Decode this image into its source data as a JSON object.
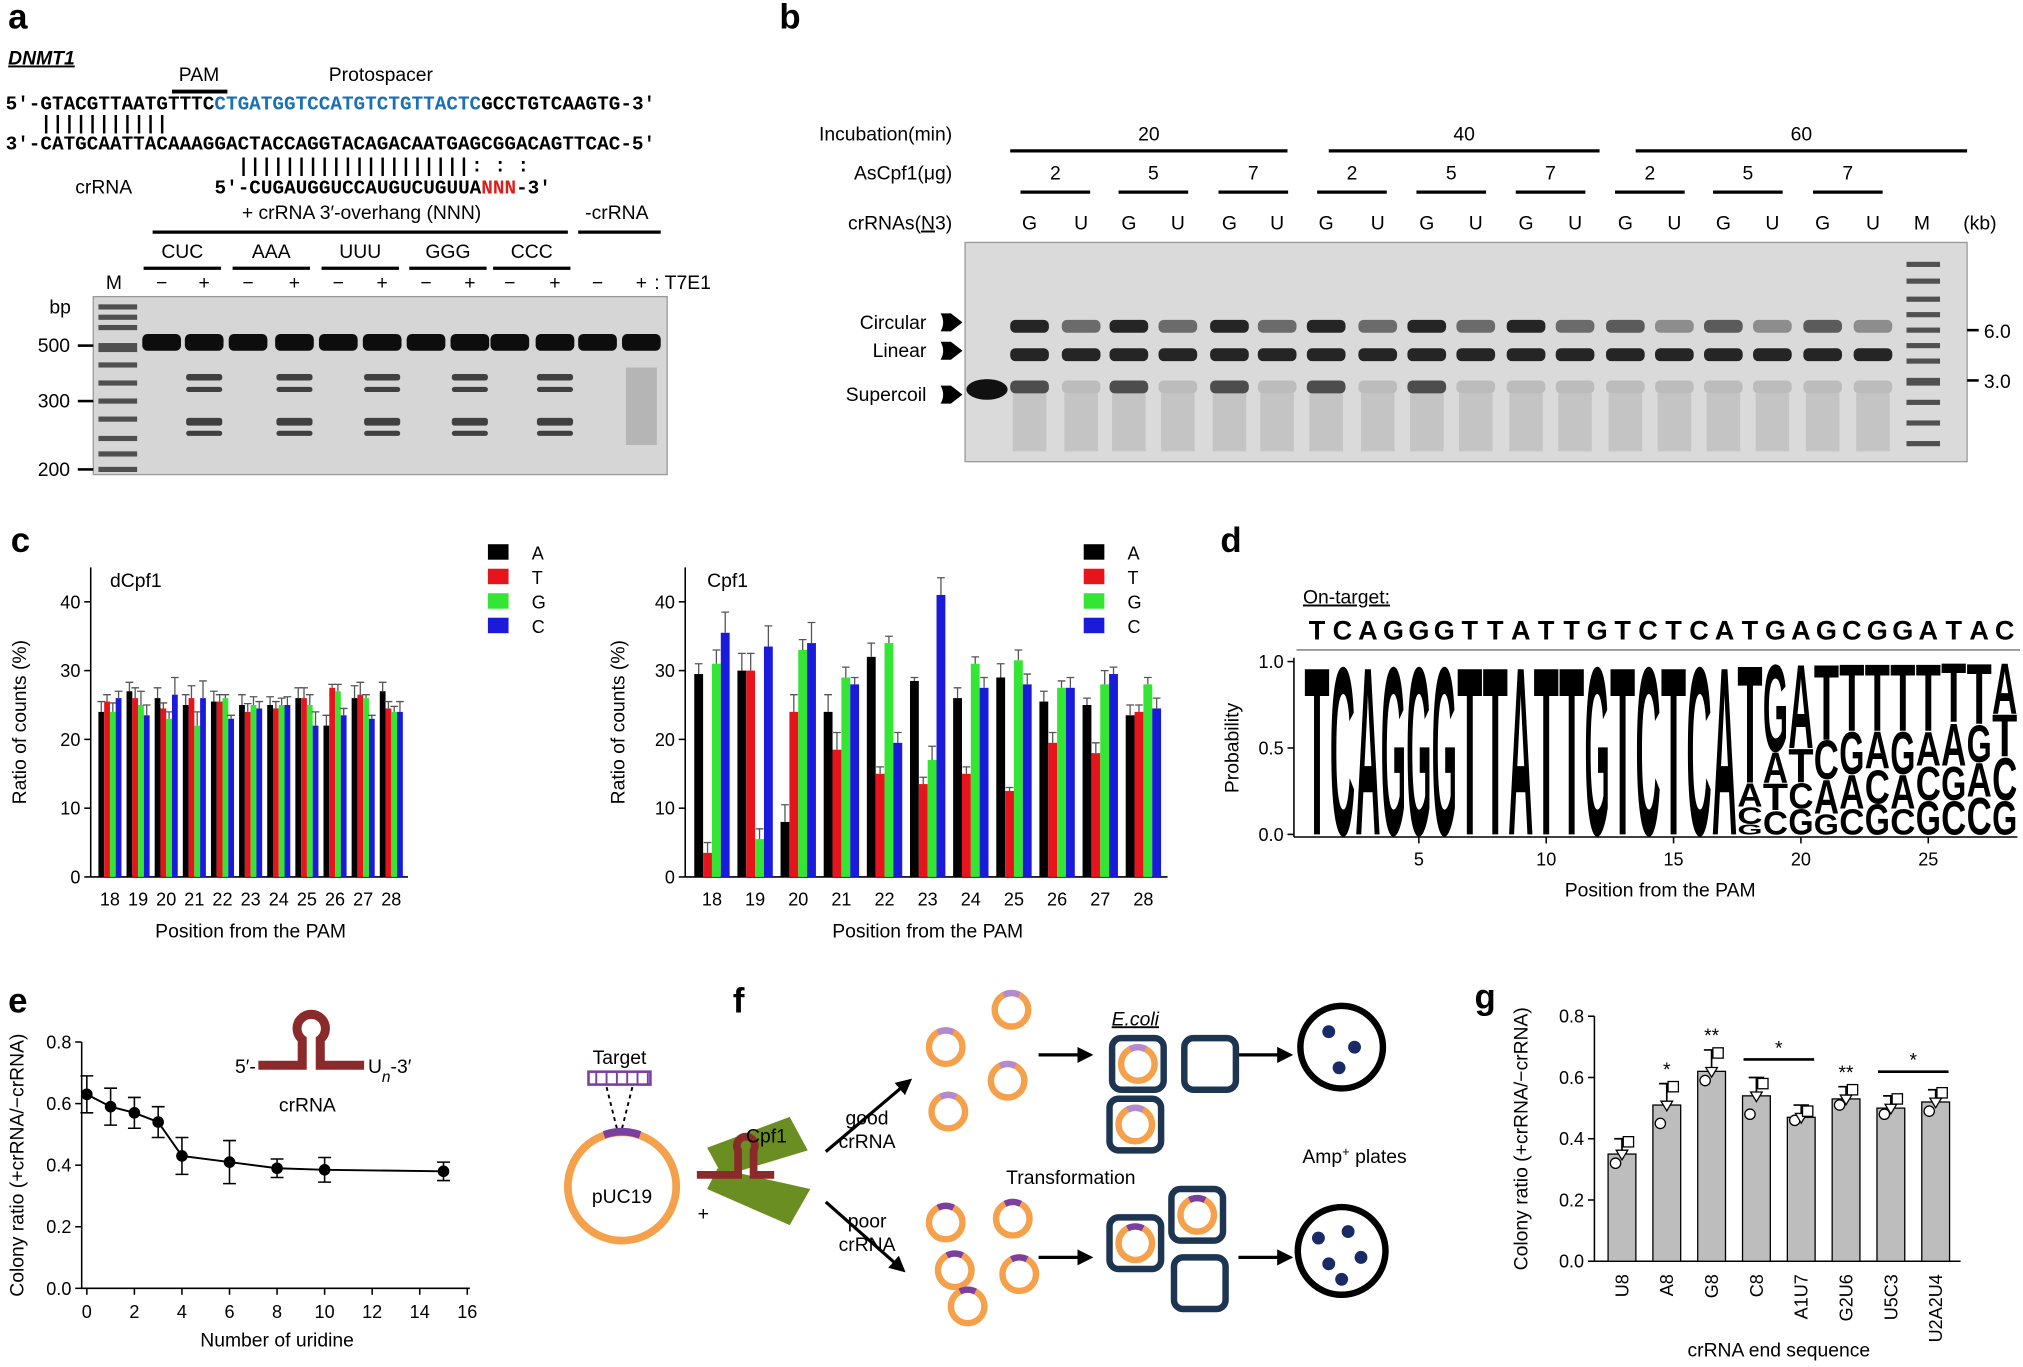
{
  "a": {
    "label": "a",
    "gene": "DNMT1",
    "pam": "PAM",
    "protospacer": "Protospacer",
    "top_strand": [
      "5′-GTACGTTAATGTTTC",
      "CTGATGGTCCATGTCTGTTACTC",
      "GCCTGTCAAGTG-3′"
    ],
    "pairs_1": "|||||||||||",
    "bottom_strand": "3′-CATGCAATTACAAAGGACTACCAGGTACAGACAATGAGCGGACAGTTCAC-5′",
    "pairs_2": "||||||||||||||||||||",
    "mismatch": ": : :",
    "crrna_label": "crRNA",
    "crrna": [
      "5′-CUGAUGGUCCAUGUCUGUUA",
      "NNN",
      "-3′"
    ],
    "overhang_title": "+ crRNA 3′-overhang (NNN)",
    "no_crrna": "-crRNA",
    "overhangs": [
      "CUC",
      "AAA",
      "UUU",
      "GGG",
      "CCC"
    ],
    "marker": "M",
    "treatment_signs": [
      "−",
      "+"
    ],
    "treatment": ": T7E1",
    "size_unit": "bp",
    "sizes": [
      500,
      300,
      200
    ]
  },
  "b": {
    "label": "b",
    "incubation_label": "Incubation(min)",
    "incubation": [
      20,
      40,
      60
    ],
    "enzyme_label": "AsCpf1(μg)",
    "enzyme": [
      2,
      5,
      7
    ],
    "crrna_label": [
      "crRNAs(",
      "N",
      "3)"
    ],
    "crrna": [
      "G",
      "U"
    ],
    "marker": "M",
    "unit": "(kb)",
    "forms": [
      "Circular",
      "Linear",
      "Supercoil"
    ],
    "sizes": [
      "6.0",
      "3.0"
    ]
  },
  "d": {
    "label": "d",
    "on_target": "On-target:",
    "sequence": [
      "T",
      "C",
      "A",
      "G",
      "G",
      "G",
      "T",
      "T",
      "A",
      "T",
      "T",
      "G",
      "T",
      "C",
      "T",
      "C",
      "A",
      "T",
      "G",
      "A",
      "G",
      "C",
      "G",
      "G",
      "A",
      "T",
      "A",
      "C"
    ],
    "colors": {
      "A": "#000000",
      "C": "#1010d0",
      "G": "#0a8a0a",
      "T": "#e00000"
    },
    "ylabel": "Probability",
    "xlabel": "Position from the PAM",
    "xlim": [
      0.5,
      28.5
    ],
    "xticks": [
      5,
      10,
      15,
      20,
      25
    ],
    "ylim": [
      0,
      1
    ],
    "yticks": [
      {
        "value": 0,
        "label": "0.0"
      },
      0.5,
      {
        "value": 1,
        "label": "1.0"
      }
    ],
    "columns": [
      [
        [
          "T",
          1
        ]
      ],
      [
        [
          "C",
          1
        ]
      ],
      [
        [
          "A",
          1
        ]
      ],
      [
        [
          "G",
          1
        ]
      ],
      [
        [
          "G",
          1
        ]
      ],
      [
        [
          "G",
          1
        ]
      ],
      [
        [
          "T",
          1
        ]
      ],
      [
        [
          "T",
          1
        ]
      ],
      [
        [
          "A",
          1
        ]
      ],
      [
        [
          "T",
          1
        ]
      ],
      [
        [
          "T",
          1
        ]
      ],
      [
        [
          "G",
          1
        ]
      ],
      [
        [
          "T",
          1
        ]
      ],
      [
        [
          "C",
          1
        ]
      ],
      [
        [
          "T",
          1
        ]
      ],
      [
        [
          "C",
          1
        ]
      ],
      [
        [
          "A",
          1
        ]
      ],
      [
        [
          "G",
          0.06
        ],
        [
          "C",
          0.1
        ],
        [
          "A",
          0.14
        ],
        [
          "T",
          0.7
        ]
      ],
      [
        [
          "C",
          0.14
        ],
        [
          "T",
          0.16
        ],
        [
          "A",
          0.18
        ],
        [
          "G",
          0.52
        ]
      ],
      [
        [
          "G",
          0.15
        ],
        [
          "C",
          0.15
        ],
        [
          "T",
          0.2
        ],
        [
          "A",
          0.5
        ]
      ],
      [
        [
          "G",
          0.12
        ],
        [
          "A",
          0.2
        ],
        [
          "C",
          0.23
        ],
        [
          "T",
          0.45
        ]
      ],
      [
        [
          "C",
          0.15
        ],
        [
          "A",
          0.2
        ],
        [
          "G",
          0.25
        ],
        [
          "T",
          0.4
        ]
      ],
      [
        [
          "G",
          0.18
        ],
        [
          "C",
          0.2
        ],
        [
          "A",
          0.22
        ],
        [
          "T",
          0.4
        ]
      ],
      [
        [
          "C",
          0.15
        ],
        [
          "A",
          0.2
        ],
        [
          "G",
          0.25
        ],
        [
          "T",
          0.4
        ]
      ],
      [
        [
          "G",
          0.2
        ],
        [
          "C",
          0.2
        ],
        [
          "A",
          0.2
        ],
        [
          "T",
          0.4
        ]
      ],
      [
        [
          "C",
          0.2
        ],
        [
          "G",
          0.2
        ],
        [
          "A",
          0.25
        ],
        [
          "T",
          0.35
        ]
      ],
      [
        [
          "C",
          0.22
        ],
        [
          "A",
          0.2
        ],
        [
          "G",
          0.22
        ],
        [
          "T",
          0.36
        ]
      ],
      [
        [
          "G",
          0.2
        ],
        [
          "C",
          0.25
        ],
        [
          "T",
          0.25
        ],
        [
          "A",
          0.3
        ]
      ]
    ]
  },
  "f": {
    "label": "f",
    "target": "Target",
    "plasmid": "pUC19",
    "plus": "+",
    "enzyme": "Cpf1",
    "good": [
      "good",
      "crRNA"
    ],
    "poor": [
      "poor",
      "crRNA"
    ],
    "host": "E.coli",
    "step": "Transformation",
    "plates": [
      "Amp",
      "+",
      " plates"
    ]
  },
  "chart_data": [
    {
      "type": "bar",
      "label": "c",
      "title": "dCpf1",
      "categories": [
        "18",
        "19",
        "20",
        "21",
        "22",
        "23",
        "24",
        "25",
        "26",
        "27",
        "28"
      ],
      "series": [
        {
          "name": "A",
          "color": "#000000",
          "values": [
            24,
            27,
            26,
            25,
            25.5,
            25,
            25,
            26,
            22,
            26,
            27
          ],
          "errors": [
            1.5,
            1.3,
            1.5,
            1.5,
            1.5,
            1.5,
            1.2,
            1.5,
            1.5,
            1.8,
            1.3
          ]
        },
        {
          "name": "T",
          "color": "#e8141b",
          "values": [
            25.5,
            26,
            24.5,
            26,
            25.5,
            24,
            24.5,
            26,
            27.5,
            26.5,
            24.5
          ],
          "errors": [
            1,
            1.5,
            0.8,
            1.8,
            1,
            1.2,
            1,
            1.5,
            0.5,
            1.8,
            1
          ]
        },
        {
          "name": "G",
          "color": "#33e633",
          "values": [
            24,
            25,
            23,
            22,
            26,
            25,
            25,
            25,
            27,
            26,
            24
          ],
          "errors": [
            1.3,
            2,
            1,
            2,
            0.5,
            1.2,
            1,
            1.5,
            1,
            0.5,
            0.8
          ]
        },
        {
          "name": "C",
          "color": "#1a1adb",
          "values": [
            26,
            23.5,
            26.5,
            26,
            23,
            24.5,
            25,
            22,
            23.5,
            23,
            24
          ],
          "errors": [
            1,
            1.5,
            2.5,
            2.5,
            0.5,
            1,
            1.2,
            2,
            1,
            0.5,
            1.5
          ]
        }
      ],
      "ylim": [
        0,
        45
      ],
      "yticks": [
        0,
        10,
        20,
        30,
        40
      ],
      "ylabel": "Ratio of counts (%)",
      "xlabel": "Position from the PAM"
    },
    {
      "type": "bar",
      "title": "Cpf1",
      "categories": [
        "18",
        "19",
        "20",
        "21",
        "22",
        "23",
        "24",
        "25",
        "26",
        "27",
        "28"
      ],
      "series": [
        {
          "name": "A",
          "color": "#000000",
          "values": [
            29.5,
            30,
            8,
            24,
            32,
            28.5,
            26,
            29,
            25.5,
            25,
            23.5
          ],
          "errors": [
            1.5,
            2.5,
            2.5,
            2.5,
            2,
            0.5,
            1.5,
            2,
            1.5,
            1,
            1.5
          ]
        },
        {
          "name": "T",
          "color": "#e8141b",
          "values": [
            3.5,
            30,
            24,
            18.5,
            15,
            13.5,
            15,
            12.5,
            19.5,
            18,
            24
          ],
          "errors": [
            1.5,
            2.5,
            2.5,
            2.5,
            1,
            1,
            1,
            0.5,
            1.5,
            1.5,
            1
          ]
        },
        {
          "name": "G",
          "color": "#33e633",
          "values": [
            31,
            5.5,
            33,
            29,
            34,
            17,
            31,
            31.5,
            27.5,
            28,
            28
          ],
          "errors": [
            2,
            1.5,
            1.5,
            1.5,
            1,
            2,
            1,
            1.5,
            1,
            2,
            1
          ]
        },
        {
          "name": "C",
          "color": "#1a1adb",
          "values": [
            35.5,
            33.5,
            34,
            28,
            19.5,
            41,
            27.5,
            28,
            27.5,
            29.5,
            24.5
          ],
          "errors": [
            3,
            3,
            3,
            1,
            1.5,
            2.5,
            1.5,
            1.5,
            1.5,
            1,
            1.5
          ]
        }
      ],
      "ylim": [
        0,
        45
      ],
      "yticks": [
        0,
        10,
        20,
        30,
        40
      ],
      "ylabel": "Ratio of counts (%)",
      "xlabel": "Position from the PAM"
    },
    {
      "type": "line",
      "label": "e",
      "x": [
        0,
        1,
        2,
        3,
        4,
        6,
        8,
        10,
        15
      ],
      "values": [
        0.63,
        0.59,
        0.57,
        0.54,
        0.43,
        0.41,
        0.39,
        0.385,
        0.38
      ],
      "errors": [
        0.06,
        0.06,
        0.05,
        0.05,
        0.06,
        0.07,
        0.03,
        0.04,
        0.03
      ],
      "color": "#000000",
      "xlim": [
        0,
        16
      ],
      "xticks": [
        0,
        2,
        4,
        6,
        8,
        10,
        12,
        14,
        16
      ],
      "ylim": [
        0,
        0.8
      ],
      "yticks": [
        {
          "value": 0,
          "label": "0.0"
        },
        0.2,
        0.4,
        0.6,
        0.8
      ],
      "xlabel": "Number of uridine",
      "ylabel": "Colony ratio (+crRNA/−crRNA)",
      "inset": {
        "left": "5′-",
        "right": "U",
        "sub": "n",
        "right_end": "-3′",
        "label": "crRNA"
      }
    },
    {
      "type": "bar",
      "label": "g",
      "categories": [
        "U8",
        "A8",
        "G8",
        "C8",
        "A1U7",
        "G2U6",
        "U5C3",
        "U2A2U4"
      ],
      "values": [
        0.35,
        0.51,
        0.62,
        0.54,
        0.47,
        0.53,
        0.5,
        0.52
      ],
      "errors": [
        0.05,
        0.07,
        0.07,
        0.06,
        0.04,
        0.04,
        0.04,
        0.04
      ],
      "color": "#bdbdbd",
      "points": [
        [
          0.32,
          0.35,
          0.39
        ],
        [
          0.45,
          0.51,
          0.57
        ],
        [
          0.59,
          0.62,
          0.68
        ],
        [
          0.48,
          0.54,
          0.58
        ],
        [
          0.46,
          0.47,
          0.49
        ],
        [
          0.51,
          0.53,
          0.56
        ],
        [
          0.48,
          0.5,
          0.53
        ],
        [
          0.49,
          0.52,
          0.55
        ]
      ],
      "annotations": [
        "*",
        "**",
        "*",
        "**",
        "*"
      ],
      "ylim": [
        0,
        0.8
      ],
      "yticks": [
        {
          "value": 0,
          "label": "0.0"
        },
        0.2,
        0.4,
        0.6,
        0.8
      ],
      "xlabel": "crRNA end sequence",
      "ylabel": "Colony ratio (+crRNA/−crRNA)"
    }
  ]
}
